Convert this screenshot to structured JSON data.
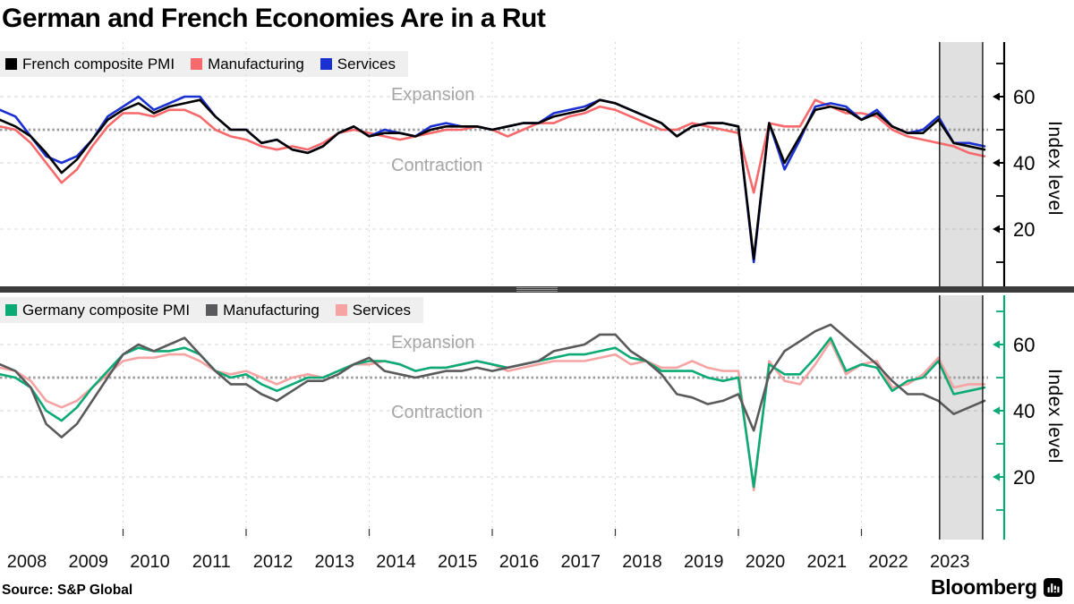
{
  "title": "German and French Economies Are in a Rut",
  "source": "Source: S&P Global",
  "brand": {
    "name": "Bloomberg"
  },
  "x_axis": {
    "years": [
      "2008",
      "2009",
      "2010",
      "2011",
      "2012",
      "2013",
      "2014",
      "2015",
      "2016",
      "2017",
      "2018",
      "2019",
      "2020",
      "2021",
      "2022",
      "2023"
    ]
  },
  "chart_data": [
    {
      "type": "line",
      "panel": "France",
      "legend": [
        {
          "label": "French composite PMI",
          "color": "#000000"
        },
        {
          "label": "Manufacturing",
          "color": "#f8696c"
        },
        {
          "label": "Services",
          "color": "#1b30d1"
        }
      ],
      "y_axis": {
        "label": "Index level",
        "ticks": [
          "60",
          "40",
          "20"
        ],
        "minor_ticks": [
          70,
          50,
          30,
          10
        ],
        "range": [
          5,
          75
        ]
      },
      "threshold": {
        "value": 50,
        "above_label": "Expansion",
        "below_label": "Contraction",
        "color": "#9c9c9c"
      },
      "axis_color": "#000000",
      "x_start": 2008,
      "x_step": 0.25,
      "highlight_span": {
        "x0": 2023.27,
        "x1": 2023.97
      },
      "series": [
        {
          "name": "French composite PMI",
          "color": "#000000",
          "values": [
            53,
            51,
            48,
            43,
            37,
            41,
            47,
            53,
            56,
            58,
            55,
            57,
            58,
            59,
            54,
            50,
            50,
            46,
            47,
            44,
            43,
            45,
            49,
            51,
            48,
            49,
            49,
            48,
            50,
            51,
            51,
            51,
            50,
            51,
            52,
            52,
            54,
            55,
            56,
            59,
            58,
            56,
            54,
            52,
            48,
            51,
            52,
            52,
            51,
            11,
            52,
            40,
            48,
            56,
            57,
            56,
            53,
            55,
            51,
            49,
            49,
            53,
            46,
            45,
            44
          ]
        },
        {
          "name": "Manufacturing",
          "color": "#f8696c",
          "values": [
            51,
            50,
            46,
            40,
            34,
            38,
            45,
            51,
            55,
            55,
            54,
            56,
            56,
            54,
            50,
            48,
            47,
            45,
            44,
            45,
            44,
            46,
            49,
            50,
            49,
            48,
            47,
            48,
            49,
            50,
            50,
            51,
            50,
            48,
            50,
            52,
            52,
            54,
            55,
            57,
            56,
            54,
            52,
            50,
            50,
            52,
            51,
            50,
            49,
            31,
            52,
            51,
            51,
            59,
            57,
            55,
            55,
            54,
            50,
            48,
            47,
            46,
            45,
            43,
            42
          ]
        },
        {
          "name": "Services",
          "color": "#1b30d1",
          "values": [
            56,
            54,
            48,
            42,
            40,
            42,
            47,
            54,
            57,
            60,
            56,
            58,
            60,
            60,
            54,
            50,
            50,
            46,
            47,
            44,
            43,
            45,
            49,
            51,
            48,
            50,
            49,
            48,
            51,
            52,
            51,
            51,
            50,
            51,
            52,
            52,
            55,
            56,
            57,
            59,
            58,
            56,
            54,
            52,
            48,
            51,
            52,
            52,
            51,
            10,
            52,
            38,
            47,
            57,
            58,
            57,
            53,
            56,
            51,
            49,
            50,
            54,
            46,
            46,
            45
          ]
        }
      ]
    },
    {
      "type": "line",
      "panel": "Germany",
      "legend": [
        {
          "label": "Germany composite PMI",
          "color": "#0caa74"
        },
        {
          "label": "Manufacturing",
          "color": "#5a5a5c"
        },
        {
          "label": "Services",
          "color": "#f5a3a3"
        }
      ],
      "y_axis": {
        "label": "Index level",
        "ticks": [
          "60",
          "40",
          "20"
        ],
        "minor_ticks": [
          70,
          50,
          30,
          10
        ],
        "range": [
          5,
          75
        ]
      },
      "threshold": {
        "value": 50,
        "above_label": "Expansion",
        "below_label": "Contraction",
        "color": "#9c9c9c"
      },
      "axis_color": "#0caa74",
      "x_start": 2008,
      "x_step": 0.25,
      "highlight_span": {
        "x0": 2023.27,
        "x1": 2023.97
      },
      "series": [
        {
          "name": "Germany composite PMI",
          "color": "#0caa74",
          "values": [
            51,
            50,
            47,
            40,
            37,
            41,
            47,
            52,
            57,
            59,
            58,
            58,
            59,
            57,
            52,
            50,
            51,
            48,
            46,
            48,
            50,
            50,
            52,
            54,
            55,
            55,
            54,
            52,
            53,
            53,
            54,
            55,
            54,
            53,
            54,
            55,
            56,
            57,
            57,
            58,
            59,
            56,
            55,
            52,
            52,
            52,
            50,
            49,
            50,
            17,
            54,
            51,
            51,
            56,
            62,
            52,
            54,
            53,
            46,
            49,
            50,
            55,
            45,
            46,
            47
          ]
        },
        {
          "name": "Manufacturing",
          "color": "#5a5a5c",
          "values": [
            54,
            52,
            47,
            36,
            32,
            36,
            43,
            50,
            57,
            60,
            58,
            60,
            62,
            57,
            52,
            48,
            48,
            45,
            43,
            46,
            49,
            49,
            51,
            54,
            56,
            52,
            51,
            50,
            51,
            52,
            52,
            53,
            52,
            53,
            54,
            55,
            58,
            59,
            60,
            63,
            63,
            58,
            55,
            51,
            45,
            44,
            42,
            43,
            45,
            34,
            51,
            58,
            61,
            64,
            66,
            62,
            58,
            54,
            49,
            45,
            45,
            43,
            39,
            41,
            43
          ]
        },
        {
          "name": "Services",
          "color": "#f5a3a3",
          "values": [
            53,
            52,
            49,
            43,
            41,
            43,
            47,
            51,
            55,
            56,
            56,
            57,
            57,
            55,
            52,
            51,
            52,
            50,
            48,
            50,
            51,
            50,
            52,
            54,
            54,
            55,
            54,
            52,
            53,
            53,
            54,
            55,
            54,
            52,
            53,
            54,
            55,
            55,
            55,
            56,
            57,
            54,
            55,
            53,
            53,
            55,
            53,
            52,
            52,
            16,
            55,
            49,
            48,
            54,
            61,
            51,
            54,
            55,
            47,
            48,
            51,
            56,
            47,
            48,
            48
          ]
        }
      ]
    }
  ]
}
